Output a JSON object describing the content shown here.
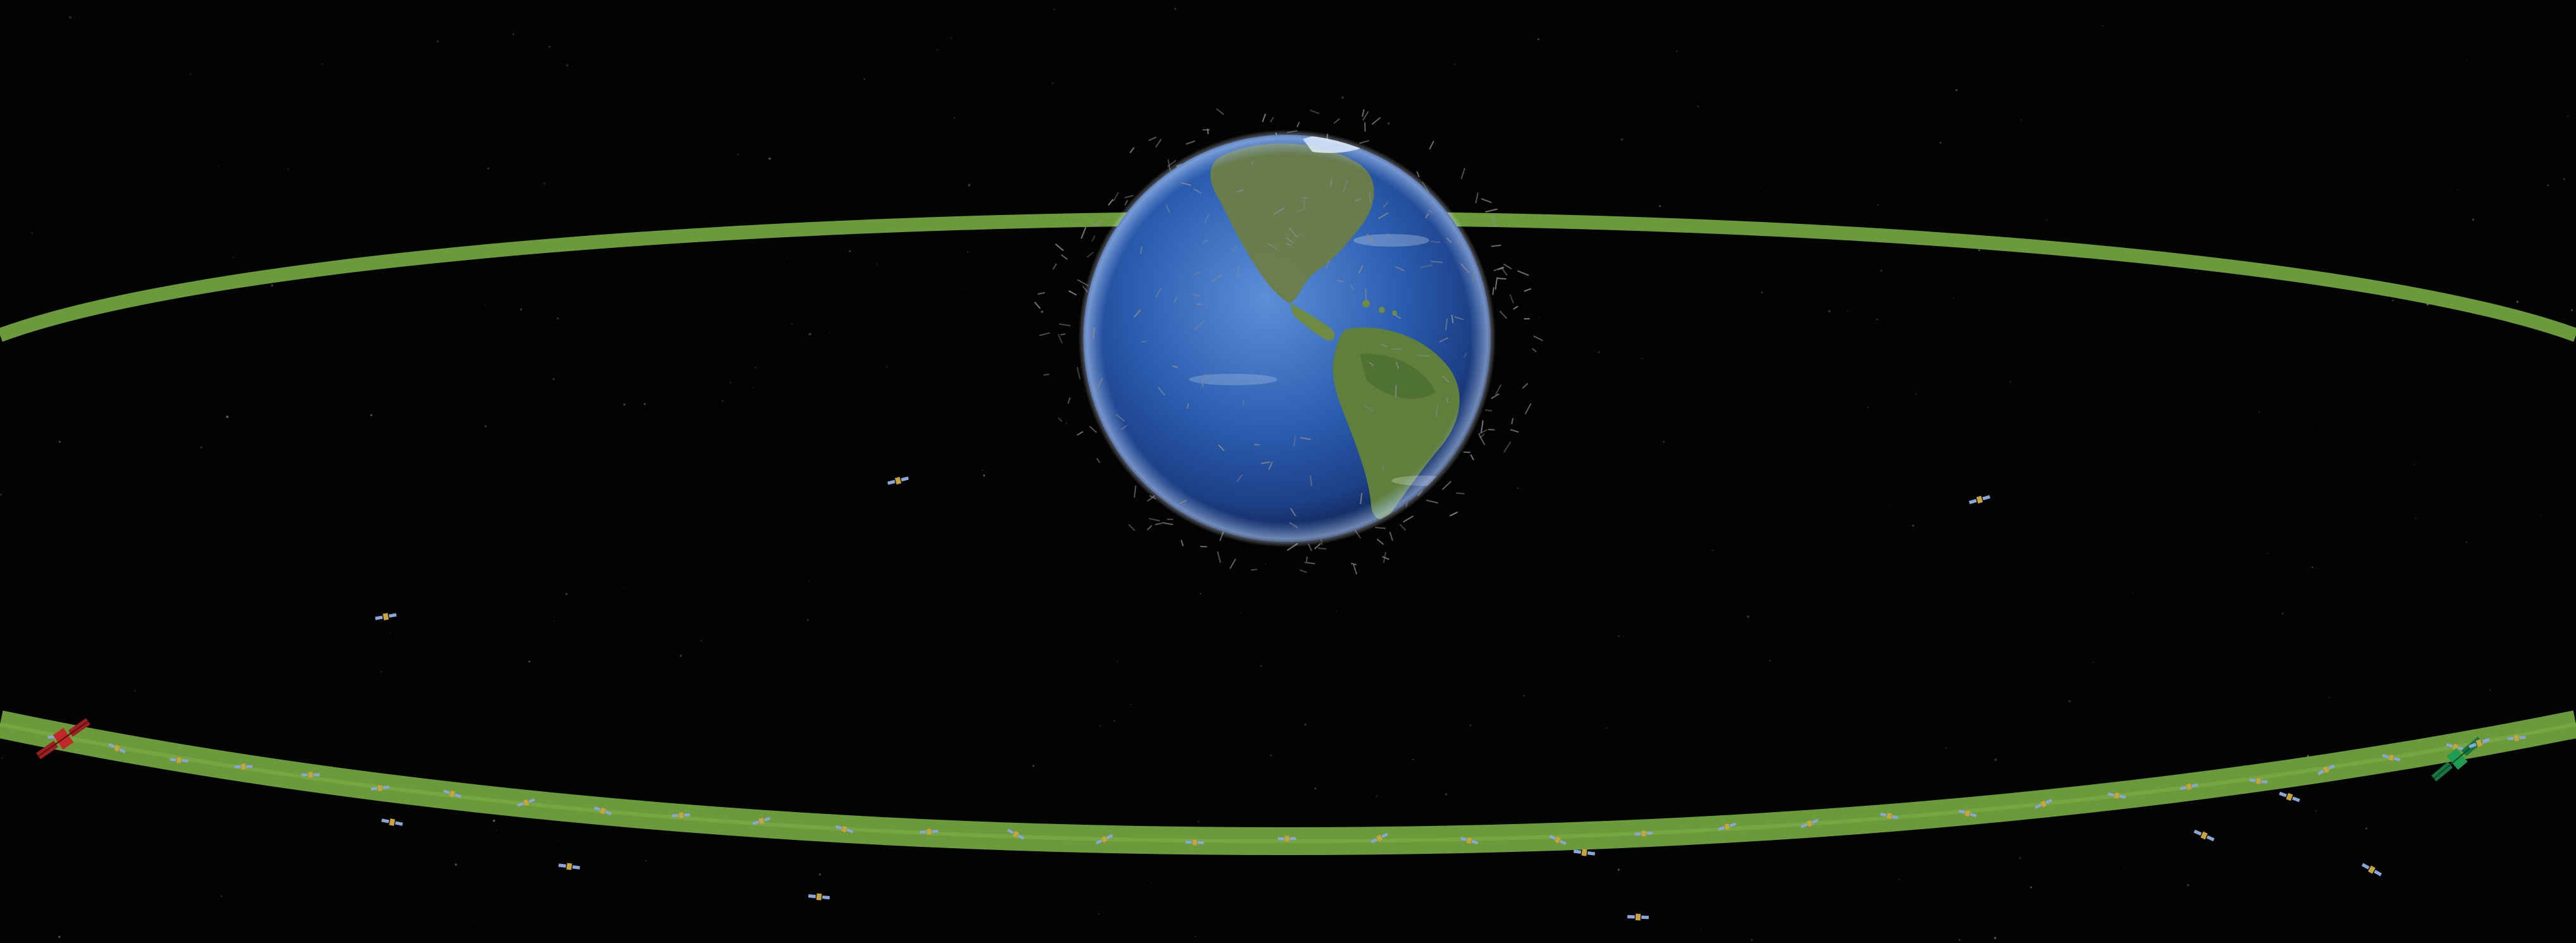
{
  "scene": {
    "background": "#030303",
    "orbit_color": "#6b9a3a",
    "earth_ocean_color": "#2a5db0",
    "earth_land_color": "#5f7f3c",
    "debris_color": "#8a8a8a",
    "satellite_marker_colors": {
      "left_satellite": "#c0282a",
      "right_satellite": "#1f9c52",
      "small_satellites": "#c9a43a"
    },
    "icons": [
      "earth-globe",
      "orbit-ring",
      "satellite-icon",
      "space-debris"
    ]
  }
}
